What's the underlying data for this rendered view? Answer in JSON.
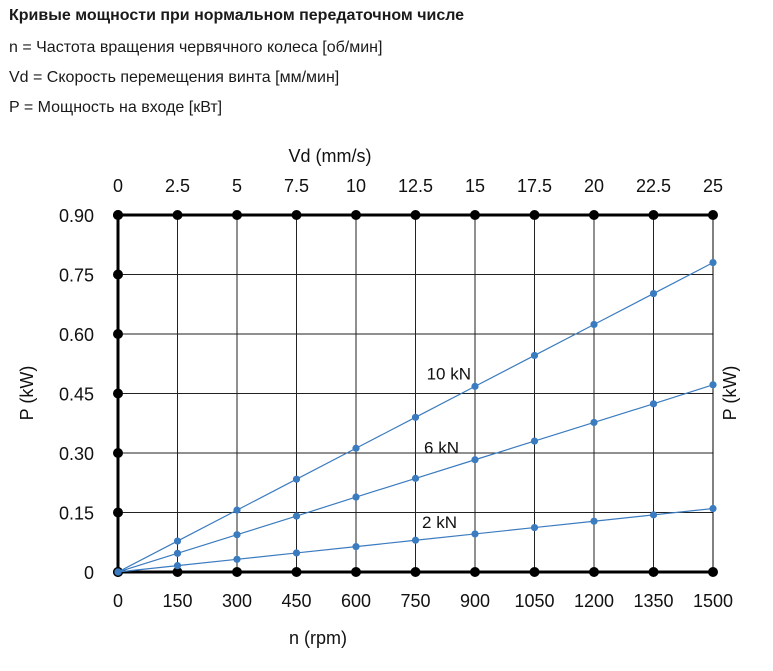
{
  "header": {
    "title": "Кривые мощности при нормальном передаточном числе",
    "lines": [
      "n = Частота вращения червячного колеса [об/мин]",
      "Vd = Скорость перемещения винта [мм/мин]",
      "P = Мощность на входе [кВт]"
    ]
  },
  "chart_data": {
    "type": "line",
    "x": [
      0,
      150,
      300,
      450,
      600,
      750,
      900,
      1050,
      1200,
      1350,
      1500
    ],
    "xlim": [
      0,
      1500
    ],
    "ylim": [
      0,
      0.9
    ],
    "xlabel": "n (rpm)",
    "ylabel": "P (kW)",
    "ylabel_right": "P (kW)",
    "x_ticks": [
      "0",
      "150",
      "300",
      "450",
      "600",
      "750",
      "900",
      "1050",
      "1200",
      "1350",
      "1500"
    ],
    "y_ticks": [
      "0",
      "0.15",
      "0.30",
      "0.45",
      "0.60",
      "0.75",
      "0.90"
    ],
    "y_tick_values": [
      0,
      0.15,
      0.3,
      0.45,
      0.6,
      0.75,
      0.9
    ],
    "x2label": "Vd (mm/s)",
    "x2_ticks": [
      "0",
      "2.5",
      "5",
      "7.5",
      "10",
      "12.5",
      "15",
      "17.5",
      "20",
      "22.5",
      "25"
    ],
    "grid": true,
    "series_color": "#3b7bbf",
    "series": [
      {
        "name": "10 kN",
        "values": [
          0,
          0.078,
          0.156,
          0.234,
          0.312,
          0.39,
          0.468,
          0.546,
          0.624,
          0.702,
          0.78
        ]
      },
      {
        "name": "6 kN",
        "values": [
          0,
          0.047,
          0.094,
          0.141,
          0.189,
          0.236,
          0.283,
          0.33,
          0.377,
          0.424,
          0.472
        ]
      },
      {
        "name": "2 kN",
        "values": [
          0,
          0.016,
          0.032,
          0.048,
          0.064,
          0.08,
          0.096,
          0.112,
          0.128,
          0.144,
          0.16
        ]
      }
    ]
  }
}
